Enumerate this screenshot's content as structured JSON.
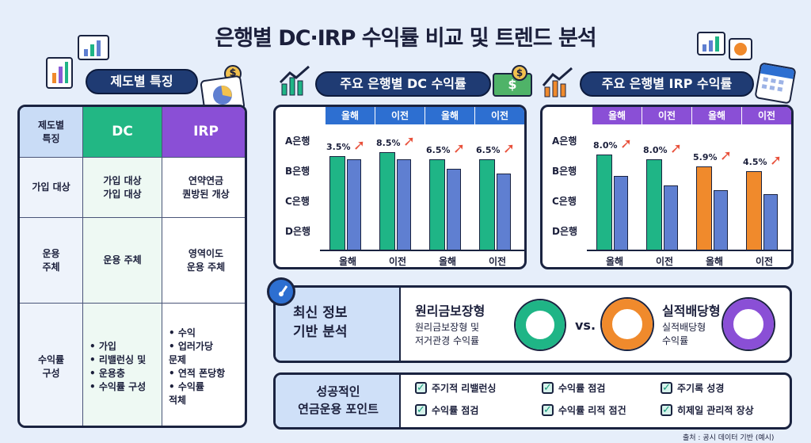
{
  "title": "은행별 DC·IRP 수익률 비교 및 트렌드 분석",
  "left": {
    "pill": "제도별 특징",
    "header": {
      "corner": "제도별\n특징",
      "dc": "DC",
      "irp": "IRP"
    },
    "rows": [
      {
        "label": "가입 대상",
        "dc": "가입 대상\n가입 대상",
        "irp": "연약연금\n퀀방된 개상"
      },
      {
        "label": "운용\n주체",
        "dc": "운용 주체",
        "irp": "영역이도\n운용 주체"
      },
      {
        "label": "수익률\n구성",
        "dc": "• 가입\n• 리밸런싱 및\n• 운용충\n• 수익률 구성",
        "irp": "• 수익\n• 업러가당\n   문제\n• 연적 폰당항\n• 수익률\n   적체"
      }
    ]
  },
  "dc_chart": {
    "pill": "주요 은행별 DC 수익률",
    "header": [
      "올해",
      "이전",
      "올해",
      "이전"
    ],
    "banks": [
      "A은행",
      "B은행",
      "C은행",
      "D은행"
    ],
    "xlabels": [
      "올해",
      "이전",
      "올해",
      "이전"
    ],
    "labels": [
      "3.5%",
      "8.5%",
      "6.5%",
      "6.5%"
    ],
    "values": [
      [
        7.9,
        7.6
      ],
      [
        8.2,
        7.6
      ],
      [
        7.6,
        6.8
      ],
      [
        7.6,
        6.4
      ]
    ],
    "colors": {
      "this_year": "#1fb586",
      "prev": "#5f7fd1"
    }
  },
  "irp_chart": {
    "pill": "주요 은행별 IRP 수익률",
    "header": [
      "올해",
      "이전",
      "올해",
      "이전"
    ],
    "banks": [
      "A은행",
      "B은행",
      "C은행",
      "D은행"
    ],
    "xlabels": [
      "올해",
      "이전",
      "올해",
      "이전"
    ],
    "labels": [
      "8.0%",
      "8.0%",
      "5.9%",
      "4.5%"
    ],
    "values": [
      [
        8.0,
        6.2
      ],
      [
        7.6,
        5.4
      ],
      [
        7.0,
        5.0
      ],
      [
        6.6,
        4.7
      ]
    ],
    "colors": [
      "#1fb586",
      "#1fb586",
      "#f08a2c",
      "#f08a2c"
    ],
    "prev_color": "#5f7fd1"
  },
  "analysis": {
    "heading": "최신 정보\n기반 분석",
    "left_title": "원리금보장형",
    "left_desc": "원리금보장형 및\n저거관경 수익률",
    "vs": "vs.",
    "right_title": "실적배당형",
    "right_desc": "실적배당형\n수익률"
  },
  "points": {
    "heading": "성공적인\n연금운용 포인트",
    "items": [
      "주기적 리밸런싱",
      "수익률 점검",
      "주기록 성경",
      "수익률 점검",
      "수익률 리적 점건",
      "히제일 관리적 장상"
    ]
  },
  "footer": "출처 : 공시 데이터 기반 (예시)",
  "icons": [
    "chart-icon",
    "coin-icon",
    "money-icon",
    "calendar-icon",
    "speedometer-icon",
    "checkbox-icon"
  ]
}
